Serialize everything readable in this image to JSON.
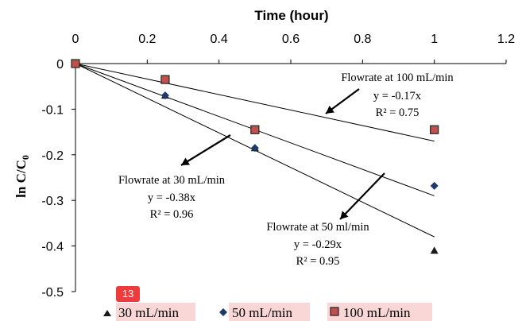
{
  "chart_data": {
    "type": "scatter",
    "xlabel": "Time (hour)",
    "ylabel": "ln C/C",
    "ylabel_sub": "0",
    "xlim": [
      0,
      1.2
    ],
    "ylim": [
      -0.5,
      0
    ],
    "x_ticks": [
      "0",
      "0.2",
      "0.4",
      "0.6",
      "0.8",
      "1",
      "1.2"
    ],
    "y_ticks": [
      "0",
      "-0.1",
      "-0.2",
      "-0.3",
      "-0.4",
      "-0.5"
    ],
    "x_axis_position": "top",
    "grid": false,
    "legend_position": "bottom",
    "series": [
      {
        "name": "30 mL/min",
        "marker": "triangle",
        "color": "#1a1a1a",
        "x": [
          0,
          0.25,
          0.5,
          1
        ],
        "y": [
          0,
          -0.07,
          -0.185,
          -0.41
        ],
        "fit_slope": -0.38
      },
      {
        "name": "50 mL/min",
        "marker": "diamond",
        "color": "#1f3a66",
        "x": [
          0,
          0.25,
          0.5,
          1
        ],
        "y": [
          0,
          -0.07,
          -0.185,
          -0.268
        ],
        "fit_slope": -0.29
      },
      {
        "name": "100 mL/min",
        "marker": "square",
        "color": "#c0504d",
        "x": [
          0,
          0.25,
          0.5,
          1
        ],
        "y": [
          0,
          -0.035,
          -0.145,
          -0.145
        ],
        "fit_slope": -0.17
      }
    ],
    "annotations": [
      {
        "lines": [
          "Flowrate at 100 mL/min",
          "y = -0.17x",
          "R² = 0.75"
        ]
      },
      {
        "lines": [
          "Flowrate at 30 mL/min",
          "y = -0.38x",
          "R² = 0.96"
        ]
      },
      {
        "lines": [
          "Flowrate at 50 ml/min",
          "y = -0.29x",
          "R² = 0.95"
        ]
      }
    ],
    "legend_highlight": "#f9d7d7"
  },
  "badge": "13"
}
